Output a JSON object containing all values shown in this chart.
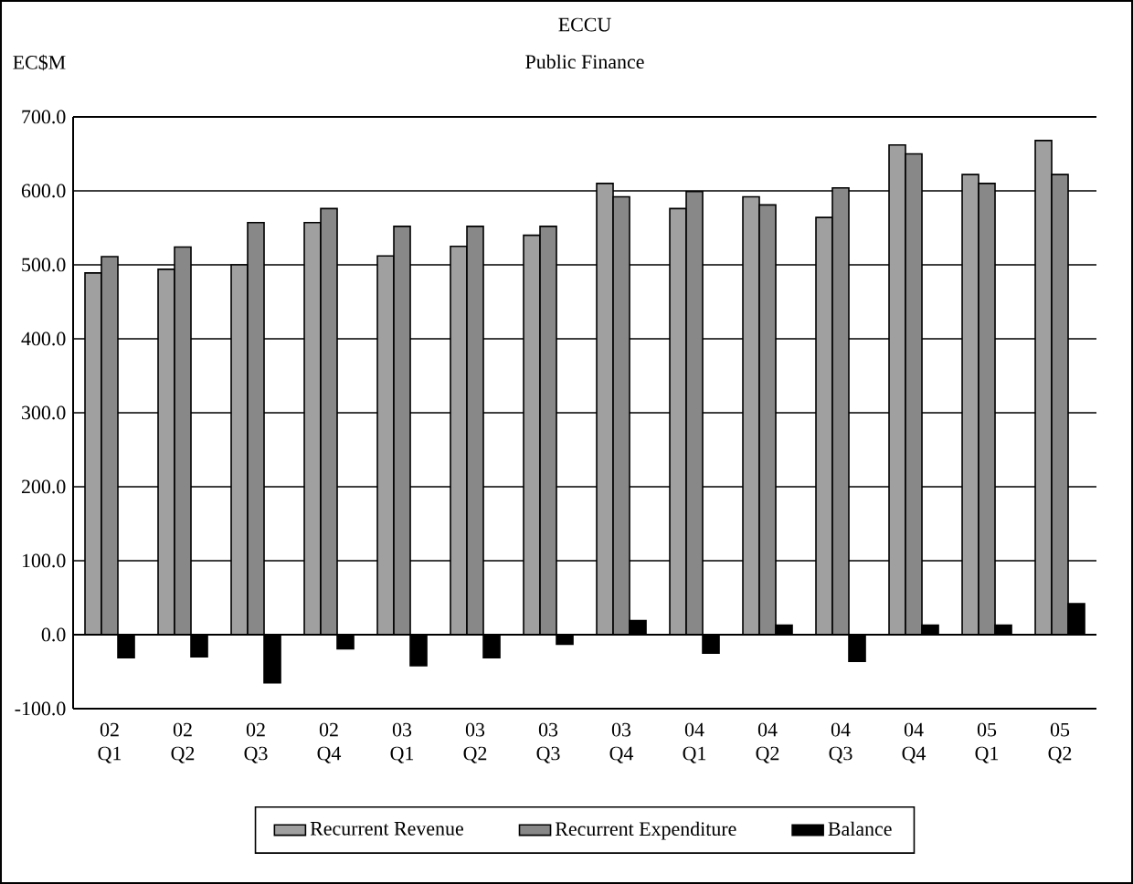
{
  "chart_data": {
    "type": "bar",
    "title": "ECCU",
    "subtitle": "Public Finance",
    "ylabel": "EC$M",
    "categories": [
      "02 Q1",
      "02 Q2",
      "02 Q3",
      "02 Q4",
      "03 Q1",
      "03 Q2",
      "03 Q3",
      "03 Q4",
      "04 Q1",
      "04 Q2",
      "04 Q3",
      "04 Q4",
      "05 Q1",
      "05 Q2"
    ],
    "series": [
      {
        "name": "Recurrent Revenue",
        "color": "#a0a0a0",
        "values": [
          489,
          494,
          500,
          557,
          512,
          525,
          540,
          610,
          576,
          592,
          564,
          662,
          622,
          668
        ]
      },
      {
        "name": "Recurrent Expenditure",
        "color": "#888888",
        "values": [
          511,
          524,
          557,
          576,
          552,
          552,
          552,
          592,
          599,
          581,
          604,
          650,
          610,
          622
        ]
      },
      {
        "name": "Balance",
        "color": "#000000",
        "values": [
          -31,
          -30,
          -65,
          -19,
          -42,
          -31,
          -13,
          19,
          -25,
          13,
          -36,
          13,
          13,
          42
        ]
      }
    ],
    "ylim": [
      -100,
      700
    ],
    "yticks": [
      {
        "value": -100,
        "label": "-100.0"
      },
      {
        "value": 0,
        "label": "0.0"
      },
      {
        "value": 100,
        "label": "100.0"
      },
      {
        "value": 200,
        "label": "200.0"
      },
      {
        "value": 300,
        "label": "300.0"
      },
      {
        "value": 400,
        "label": "400.0"
      },
      {
        "value": 500,
        "label": "500.0"
      },
      {
        "value": 600,
        "label": "600.0"
      },
      {
        "value": 700,
        "label": "700.0"
      }
    ],
    "grid": "y",
    "legend": "bottom"
  }
}
